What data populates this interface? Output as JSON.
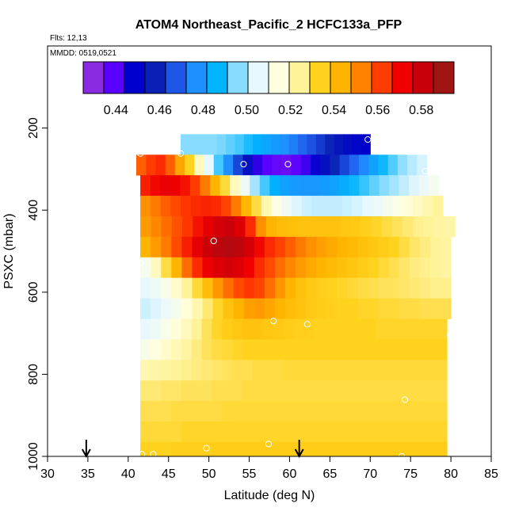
{
  "chart_data": {
    "type": "heatmap",
    "title": "ATOM4 Northeast_Pacific_2 HCFC133a_PFP",
    "flights_label": "Flts: 12,13",
    "mmdd_label": "MMDD: 0519,0521",
    "xlabel": "Latitude (deg N)",
    "ylabel": "PSXC (mbar)",
    "xlim": [
      30,
      85
    ],
    "ylim": [
      1000,
      0
    ],
    "x_ticks": [
      30,
      35,
      40,
      45,
      50,
      55,
      60,
      65,
      70,
      75,
      80,
      85
    ],
    "y_ticks": [
      200,
      400,
      600,
      800,
      1000
    ],
    "colorbar": {
      "min": 0.425,
      "max": 0.595,
      "ticks": [
        0.44,
        0.46,
        0.48,
        0.5,
        0.52,
        0.54,
        0.56,
        0.58
      ],
      "tick_labels": [
        "0.44",
        "0.46",
        "0.48",
        "0.50",
        "0.52",
        "0.54",
        "0.56",
        "0.58"
      ],
      "colors": [
        "#8a2be2",
        "#5a00ff",
        "#0000cd",
        "#0a1fb4",
        "#1e56e6",
        "#1e90ff",
        "#00b4ff",
        "#87dcff",
        "#e8f8ff",
        "#ffffe0",
        "#fff39a",
        "#ffd21e",
        "#ffb400",
        "#ff8200",
        "#ff3c00",
        "#f00000",
        "#c8000a",
        "#a01414"
      ]
    },
    "rows": [
      {
        "p": [
          215,
          265
        ],
        "lat": [
          46.5,
          70.0
        ],
        "values": [
          0.495,
          0.495,
          0.495,
          0.495,
          0.494,
          0.492,
          0.49,
          0.487,
          0.484,
          0.481,
          0.478,
          0.475,
          0.472,
          0.468,
          0.464,
          0.46,
          0.456,
          0.452,
          0.449,
          0.447,
          0.445
        ]
      },
      {
        "p": [
          265,
          315
        ],
        "lat": [
          41.0,
          77.0
        ],
        "values": [
          0.56,
          0.565,
          0.568,
          0.56,
          0.548,
          0.535,
          0.52,
          0.505,
          0.49,
          0.475,
          0.462,
          0.45,
          0.44,
          0.435,
          0.433,
          0.432,
          0.434,
          0.438,
          0.444,
          0.45,
          0.456,
          0.462,
          0.468,
          0.474,
          0.48,
          0.486,
          0.491,
          0.496,
          0.5,
          0.503
        ]
      },
      {
        "p": [
          315,
          365
        ],
        "lat": [
          41.5,
          78.5
        ],
        "values": [
          0.57,
          0.574,
          0.577,
          0.576,
          0.572,
          0.565,
          0.556,
          0.545,
          0.533,
          0.52,
          0.508,
          0.498,
          0.49,
          0.484,
          0.48,
          0.478,
          0.477,
          0.477,
          0.478,
          0.48,
          0.483,
          0.486,
          0.489,
          0.492,
          0.495,
          0.498,
          0.501,
          0.504,
          0.507,
          0.51
        ]
      },
      {
        "p": [
          365,
          415
        ],
        "lat": [
          41.5,
          79.0
        ],
        "values": [
          0.552,
          0.556,
          0.56,
          0.563,
          0.566,
          0.568,
          0.569,
          0.568,
          0.564,
          0.556,
          0.544,
          0.532,
          0.522,
          0.514,
          0.508,
          0.504,
          0.502,
          0.501,
          0.501,
          0.501,
          0.502,
          0.503,
          0.505,
          0.507,
          0.51,
          0.513,
          0.516,
          0.519,
          0.522,
          0.525
        ]
      },
      {
        "p": [
          415,
          465
        ],
        "lat": [
          41.5,
          80.5
        ],
        "values": [
          0.55,
          0.554,
          0.558,
          0.562,
          0.566,
          0.572,
          0.578,
          0.582,
          0.584,
          0.58,
          0.568,
          0.552,
          0.545,
          0.542,
          0.541,
          0.54,
          0.54,
          0.54,
          0.54,
          0.539,
          0.538,
          0.536,
          0.534,
          0.532,
          0.53,
          0.528,
          0.526,
          0.525,
          0.524,
          0.523
        ]
      },
      {
        "p": [
          465,
          515
        ],
        "lat": [
          41.5,
          80.0
        ],
        "values": [
          0.545,
          0.55,
          0.556,
          0.563,
          0.57,
          0.578,
          0.584,
          0.588,
          0.59,
          0.588,
          0.582,
          0.574,
          0.568,
          0.564,
          0.56,
          0.556,
          0.552,
          0.549,
          0.547,
          0.545,
          0.543,
          0.541,
          0.539,
          0.537,
          0.535,
          0.532,
          0.529,
          0.527,
          0.525,
          0.524
        ]
      },
      {
        "p": [
          515,
          565
        ],
        "lat": [
          41.5,
          80.0
        ],
        "values": [
          0.51,
          0.52,
          0.532,
          0.545,
          0.558,
          0.568,
          0.576,
          0.58,
          0.582,
          0.58,
          0.575,
          0.568,
          0.563,
          0.558,
          0.554,
          0.55,
          0.547,
          0.545,
          0.543,
          0.541,
          0.539,
          0.537,
          0.535,
          0.533,
          0.531,
          0.529,
          0.527,
          0.526,
          0.525,
          0.524
        ]
      },
      {
        "p": [
          565,
          615
        ],
        "lat": [
          41.5,
          80.0
        ],
        "values": [
          0.505,
          0.508,
          0.512,
          0.518,
          0.525,
          0.533,
          0.542,
          0.551,
          0.558,
          0.563,
          0.566,
          0.564,
          0.558,
          0.551,
          0.545,
          0.541,
          0.538,
          0.536,
          0.535,
          0.534,
          0.533,
          0.532,
          0.531,
          0.53,
          0.53,
          0.529,
          0.528,
          0.527,
          0.526,
          0.526
        ]
      },
      {
        "p": [
          615,
          665
        ],
        "lat": [
          41.5,
          80.0
        ],
        "values": [
          0.502,
          0.504,
          0.507,
          0.511,
          0.516,
          0.522,
          0.528,
          0.534,
          0.54,
          0.545,
          0.549,
          0.55,
          0.548,
          0.545,
          0.542,
          0.54,
          0.538,
          0.537,
          0.536,
          0.535,
          0.535,
          0.534,
          0.534,
          0.533,
          0.533,
          0.532,
          0.532,
          0.531,
          0.531,
          0.531
        ]
      },
      {
        "p": [
          665,
          715
        ],
        "lat": [
          41.5,
          79.5
        ],
        "values": [
          0.505,
          0.508,
          0.512,
          0.516,
          0.52,
          0.525,
          0.53,
          0.534,
          0.537,
          0.539,
          0.54,
          0.54,
          0.539,
          0.538,
          0.537,
          0.536,
          0.536,
          0.535,
          0.535,
          0.535,
          0.535,
          0.535,
          0.535,
          0.534,
          0.534,
          0.534,
          0.534,
          0.534,
          0.534,
          0.534
        ]
      },
      {
        "p": [
          715,
          765
        ],
        "lat": [
          41.5,
          79.5
        ],
        "values": [
          0.512,
          0.515,
          0.518,
          0.521,
          0.524,
          0.527,
          0.53,
          0.532,
          0.533,
          0.534,
          0.535,
          0.535,
          0.535,
          0.535,
          0.535,
          0.535,
          0.535,
          0.535,
          0.535,
          0.535,
          0.535,
          0.535,
          0.535,
          0.535,
          0.535,
          0.535,
          0.535,
          0.535,
          0.535,
          0.535
        ]
      },
      {
        "p": [
          765,
          815
        ],
        "lat": [
          41.5,
          79.5
        ],
        "values": [
          0.522,
          0.523,
          0.524,
          0.525,
          0.526,
          0.527,
          0.528,
          0.529,
          0.53,
          0.531,
          0.531,
          0.532,
          0.532,
          0.532,
          0.533,
          0.533,
          0.533,
          0.533,
          0.533,
          0.533,
          0.533,
          0.533,
          0.533,
          0.533,
          0.533,
          0.533,
          0.533,
          0.533,
          0.533,
          0.533
        ]
      },
      {
        "p": [
          815,
          865
        ],
        "lat": [
          41.5,
          79.5
        ],
        "values": [
          0.528,
          0.528,
          0.529,
          0.529,
          0.53,
          0.53,
          0.53,
          0.531,
          0.531,
          0.531,
          0.532,
          0.532,
          0.532,
          0.532,
          0.532,
          0.532,
          0.532,
          0.532,
          0.532,
          0.532,
          0.532,
          0.532,
          0.532,
          0.532,
          0.532,
          0.532,
          0.532,
          0.532,
          0.532,
          0.532
        ]
      },
      {
        "p": [
          865,
          915
        ],
        "lat": [
          41.5,
          79.5
        ],
        "values": [
          0.531,
          0.531,
          0.531,
          0.532,
          0.532,
          0.532,
          0.532,
          0.532,
          0.533,
          0.533,
          0.533,
          0.533,
          0.533,
          0.533,
          0.533,
          0.533,
          0.533,
          0.533,
          0.533,
          0.533,
          0.533,
          0.533,
          0.533,
          0.533,
          0.533,
          0.533,
          0.533,
          0.533,
          0.533,
          0.533
        ]
      },
      {
        "p": [
          915,
          965
        ],
        "lat": [
          41.5,
          79.5
        ],
        "values": [
          0.533,
          0.533,
          0.533,
          0.533,
          0.534,
          0.534,
          0.534,
          0.534,
          0.534,
          0.534,
          0.534,
          0.534,
          0.534,
          0.534,
          0.534,
          0.534,
          0.534,
          0.534,
          0.534,
          0.534,
          0.534,
          0.534,
          0.534,
          0.534,
          0.534,
          0.534,
          0.534,
          0.534,
          0.534,
          0.534
        ]
      },
      {
        "p": [
          965,
          1000
        ],
        "lat": [
          41.5,
          79.5
        ],
        "values": [
          0.535,
          0.535,
          0.535,
          0.536,
          0.536,
          0.536,
          0.536,
          0.537,
          0.537,
          0.537,
          0.537,
          0.537,
          0.537,
          0.537,
          0.537,
          0.537,
          0.537,
          0.537,
          0.537,
          0.537,
          0.537,
          0.537,
          0.537,
          0.537,
          0.537,
          0.537,
          0.537,
          0.537,
          0.537,
          0.537
        ]
      }
    ],
    "samples": [
      {
        "lat": 69.7,
        "p": 228
      },
      {
        "lat": 41.5,
        "p": 262
      },
      {
        "lat": 46.5,
        "p": 262
      },
      {
        "lat": 54.3,
        "p": 288
      },
      {
        "lat": 59.8,
        "p": 288
      },
      {
        "lat": 76.8,
        "p": 305
      },
      {
        "lat": 50.6,
        "p": 475
      },
      {
        "lat": 41.5,
        "p": 530
      },
      {
        "lat": 58.0,
        "p": 670
      },
      {
        "lat": 62.2,
        "p": 678
      },
      {
        "lat": 79.9,
        "p": 705
      },
      {
        "lat": 74.3,
        "p": 862
      },
      {
        "lat": 57.4,
        "p": 970
      },
      {
        "lat": 49.7,
        "p": 980
      },
      {
        "lat": 43.1,
        "p": 995
      },
      {
        "lat": 41.7,
        "p": 995
      },
      {
        "lat": 73.9,
        "p": 1000
      }
    ],
    "flight_markers": [
      {
        "lat": 34.8
      },
      {
        "lat": 61.2
      }
    ]
  }
}
